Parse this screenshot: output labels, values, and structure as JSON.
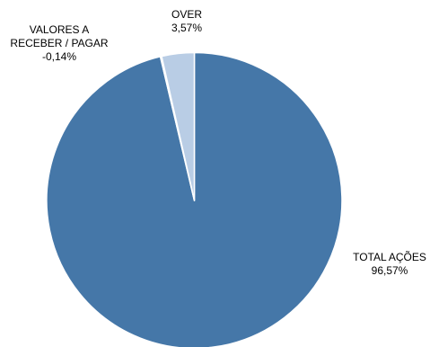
{
  "chart_data": {
    "type": "pie",
    "title": "",
    "slices": [
      {
        "name": "TOTAL AÇÕES",
        "label_lines": [
          "TOTAL AÇÕES",
          "96,57%"
        ],
        "value": 96.57,
        "color": "#4577a8"
      },
      {
        "name": "VALORES A RECEBER / PAGAR",
        "label_lines": [
          "VALORES A",
          "RECEBER / PAGAR",
          "-0,14%"
        ],
        "value": -0.14,
        "color": "#ffffff"
      },
      {
        "name": "OVER",
        "label_lines": [
          "OVER",
          "3,57%"
        ],
        "value": 3.57,
        "color": "#b9cde5"
      }
    ],
    "start_angle_deg": 0,
    "direction": "clockwise",
    "legend": "none",
    "slice_border_color": "#ffffff"
  }
}
